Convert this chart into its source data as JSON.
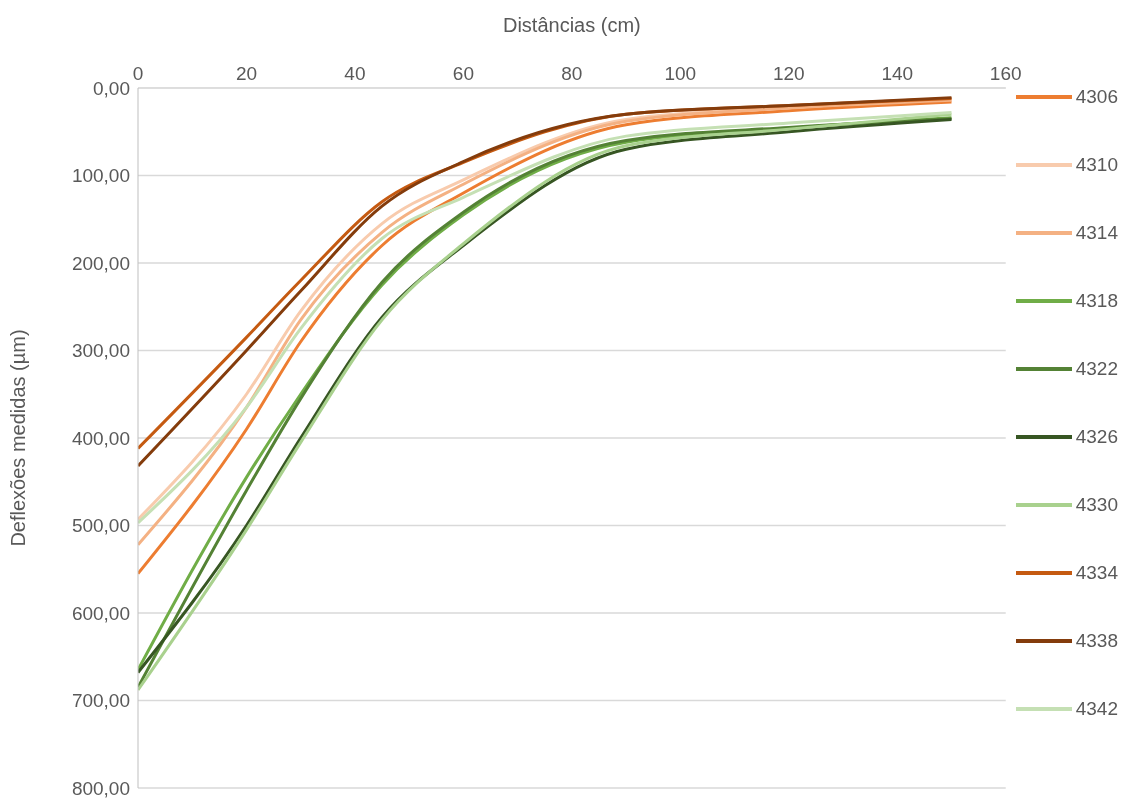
{
  "chart_data": {
    "type": "line",
    "xlabel": "Distâncias (cm)",
    "ylabel": "Deflexões medidas (µm)",
    "x": [
      0,
      20,
      30,
      45,
      60,
      90,
      120,
      150
    ],
    "xlim": [
      0,
      160
    ],
    "xticks": [
      0,
      20,
      40,
      60,
      80,
      100,
      120,
      140,
      160
    ],
    "ylim": [
      800,
      0
    ],
    "yticks": [
      {
        "value": 0,
        "label": "0,00"
      },
      {
        "value": 100,
        "label": "100,00"
      },
      {
        "value": 200,
        "label": "200,00"
      },
      {
        "value": 300,
        "label": "300,00"
      },
      {
        "value": 400,
        "label": "400,00"
      },
      {
        "value": 500,
        "label": "500,00"
      },
      {
        "value": 600,
        "label": "600,00"
      },
      {
        "value": 700,
        "label": "700,00"
      },
      {
        "value": 800,
        "label": "800,00"
      }
    ],
    "grid": "y",
    "legend": "right",
    "marker": "none",
    "line_style": "solid",
    "series": [
      {
        "name": "4306",
        "color": "#ed7d31",
        "values": [
          555,
          390,
          290,
          180,
          120,
          42,
          26,
          16
        ]
      },
      {
        "name": "4310",
        "color": "#f8cbad",
        "values": [
          493,
          350,
          255,
          155,
          105,
          36,
          22,
          13
        ]
      },
      {
        "name": "4314",
        "color": "#f4b183",
        "values": [
          522,
          365,
          265,
          165,
          110,
          38,
          23,
          14
        ]
      },
      {
        "name": "4318",
        "color": "#70ad47",
        "values": [
          665,
          445,
          350,
          225,
          145,
          62,
          46,
          34
        ]
      },
      {
        "name": "4322",
        "color": "#548235",
        "values": [
          685,
          460,
          355,
          222,
          142,
          60,
          45,
          35
        ]
      },
      {
        "name": "4326",
        "color": "#375623",
        "values": [
          668,
          500,
          400,
          262,
          180,
          70,
          50,
          36
        ]
      },
      {
        "name": "4330",
        "color": "#a9d18e",
        "values": [
          688,
          505,
          405,
          265,
          178,
          66,
          47,
          30
        ]
      },
      {
        "name": "4334",
        "color": "#c55a11",
        "values": [
          412,
          285,
          220,
          130,
          85,
          30,
          20,
          12
        ]
      },
      {
        "name": "4338",
        "color": "#843c0c",
        "values": [
          432,
          300,
          232,
          135,
          84,
          30,
          20,
          11
        ]
      },
      {
        "name": "4342",
        "color": "#c5e0b4",
        "values": [
          497,
          365,
          275,
          172,
          125,
          55,
          40,
          28
        ]
      }
    ]
  }
}
